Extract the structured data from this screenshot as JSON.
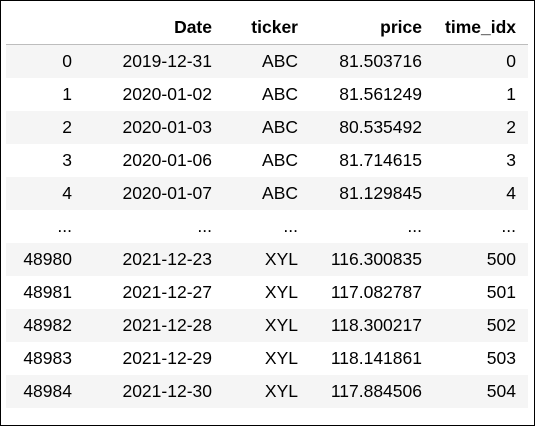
{
  "table": {
    "columns": [
      "",
      "Date",
      "ticker",
      "price",
      "time_idx"
    ],
    "rows": [
      [
        "0",
        "2019-12-31",
        "ABC",
        "81.503716",
        "0"
      ],
      [
        "1",
        "2020-01-02",
        "ABC",
        "81.561249",
        "1"
      ],
      [
        "2",
        "2020-01-03",
        "ABC",
        "80.535492",
        "2"
      ],
      [
        "3",
        "2020-01-06",
        "ABC",
        "81.714615",
        "3"
      ],
      [
        "4",
        "2020-01-07",
        "ABC",
        "81.129845",
        "4"
      ],
      [
        "...",
        "...",
        "...",
        "...",
        "..."
      ],
      [
        "48980",
        "2021-12-23",
        "XYL",
        "116.300835",
        "500"
      ],
      [
        "48981",
        "2021-12-27",
        "XYL",
        "117.082787",
        "501"
      ],
      [
        "48982",
        "2021-12-28",
        "XYL",
        "118.300217",
        "502"
      ],
      [
        "48983",
        "2021-12-29",
        "XYL",
        "118.141861",
        "503"
      ],
      [
        "48984",
        "2021-12-30",
        "XYL",
        "117.884506",
        "504"
      ]
    ]
  }
}
